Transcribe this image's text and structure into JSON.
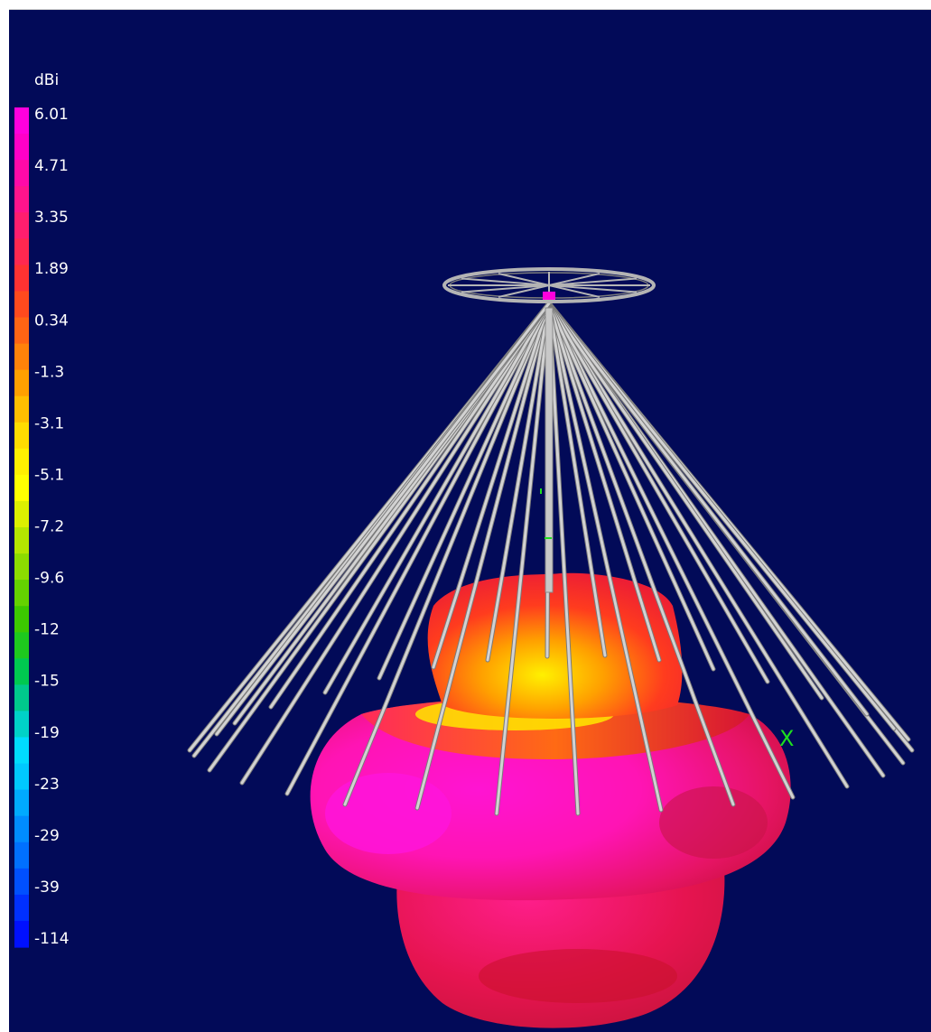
{
  "legend": {
    "unit": "dBi",
    "labels": [
      "6.01",
      "4.71",
      "3.35",
      "1.89",
      "0.34",
      "-1.3",
      "-3.1",
      "-5.1",
      "-7.2",
      "-9.6",
      "-12",
      "-15",
      "-19",
      "-23",
      "-29",
      "-39",
      "-114"
    ],
    "colors": [
      "#ff00dd",
      "#ff00c8",
      "#ff0aa8",
      "#ff148c",
      "#ff1e6e",
      "#ff2850",
      "#ff3232",
      "#ff4a1e",
      "#ff6414",
      "#ff820a",
      "#ffa000",
      "#ffbe00",
      "#ffdc00",
      "#fff000",
      "#ffff00",
      "#dcf000",
      "#b4e600",
      "#8cdc00",
      "#64d200",
      "#3cc800",
      "#1ec81e",
      "#00c850",
      "#00c88c",
      "#00d2c8",
      "#00dcff",
      "#00c8ff",
      "#00aaff",
      "#008cff",
      "#0070ff",
      "#0050ff",
      "#0030ff",
      "#0010ff"
    ]
  },
  "scene": {
    "colors": {
      "background": "#020a58",
      "wire": "#c8c8c8",
      "feed": "#ff00dd",
      "axis": "#1ee01e"
    },
    "pattern_colors": {
      "magenta": "#ff14c8",
      "pink": "#ff1e8c",
      "red": "#e8143c",
      "orange": "#ff5a14",
      "yellow": "#ffe800",
      "dark_red": "#b0102a"
    },
    "axis_label": "X"
  }
}
